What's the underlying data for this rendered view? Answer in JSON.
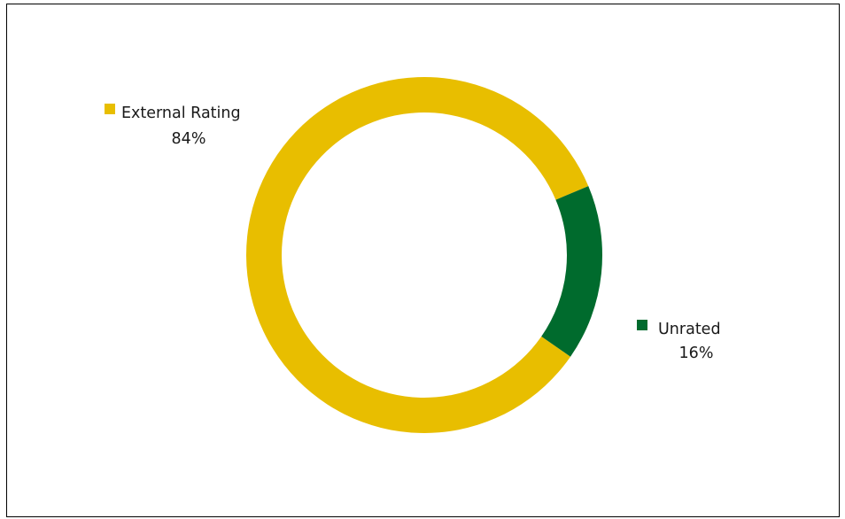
{
  "chart_data": {
    "type": "pie",
    "variant": "donut",
    "title": "",
    "slices": [
      {
        "name": "External Rating",
        "value": 84,
        "label": "84%",
        "color": "#E8BE00"
      },
      {
        "name": "Unrated",
        "value": 16,
        "label": "16%",
        "color": "#006B2D"
      }
    ],
    "legend_placement": "inline-labels",
    "grid": false
  }
}
